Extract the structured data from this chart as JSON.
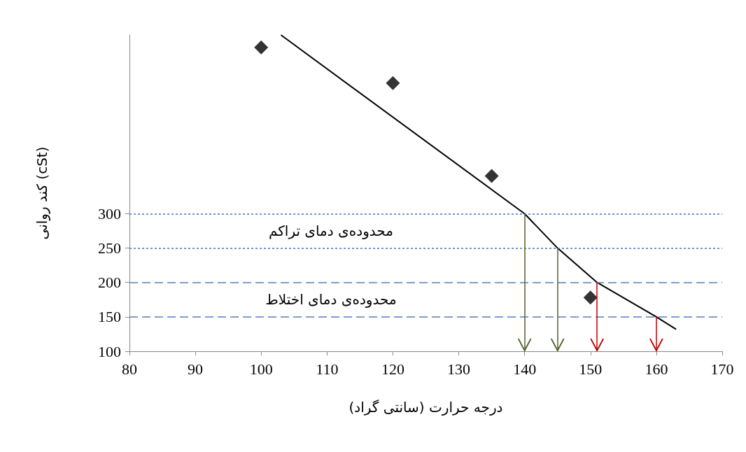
{
  "chart_data": {
    "type": "scatter",
    "xlabel": "درجه حرارت (سانتی گراد)",
    "ylabel": "کند روانی (cSt)",
    "xlim": [
      80,
      170
    ],
    "xticks": [
      80,
      90,
      100,
      110,
      120,
      130,
      140,
      150,
      160,
      170
    ],
    "ylim": [
      100,
      560
    ],
    "yticks": [
      100,
      150,
      200,
      250,
      300
    ],
    "grid": false,
    "marker": "diamond",
    "series": [
      {
        "color": "#000000",
        "x": [
          100,
          120,
          135,
          150
        ],
        "values": [
          542,
          490,
          355,
          178
        ]
      },
      {
        "type": "line",
        "marker": "none",
        "line_style": "solid",
        "color": "#000000",
        "x": [
          103,
          140,
          145,
          151,
          160,
          163
        ],
        "values": [
          560,
          300,
          250,
          200,
          150,
          132
        ]
      }
    ],
    "ref_lines": [
      {
        "axis": "y",
        "value": 300,
        "line_style": "dotted",
        "color": "#4472c4"
      },
      {
        "axis": "y",
        "value": 250,
        "line_style": "dotted",
        "color": "#4472c4"
      },
      {
        "axis": "y",
        "value": 200,
        "line_style": "dashed",
        "color": "#4f81bd"
      },
      {
        "axis": "y",
        "value": 150,
        "line_style": "dashed",
        "color": "#4f81bd"
      },
      {
        "axis": "x",
        "value": 140,
        "color": "#4f6228"
      },
      {
        "axis": "x",
        "value": 145,
        "color": "#4f6228"
      },
      {
        "axis": "x",
        "value": 151,
        "color": "#c00000"
      },
      {
        "axis": "x",
        "value": 160,
        "color": "#c00000"
      }
    ],
    "annotations": [
      "محدوده‌ی دمای تراکم",
      "محدوده‌ی دمای اختلاط"
    ]
  }
}
